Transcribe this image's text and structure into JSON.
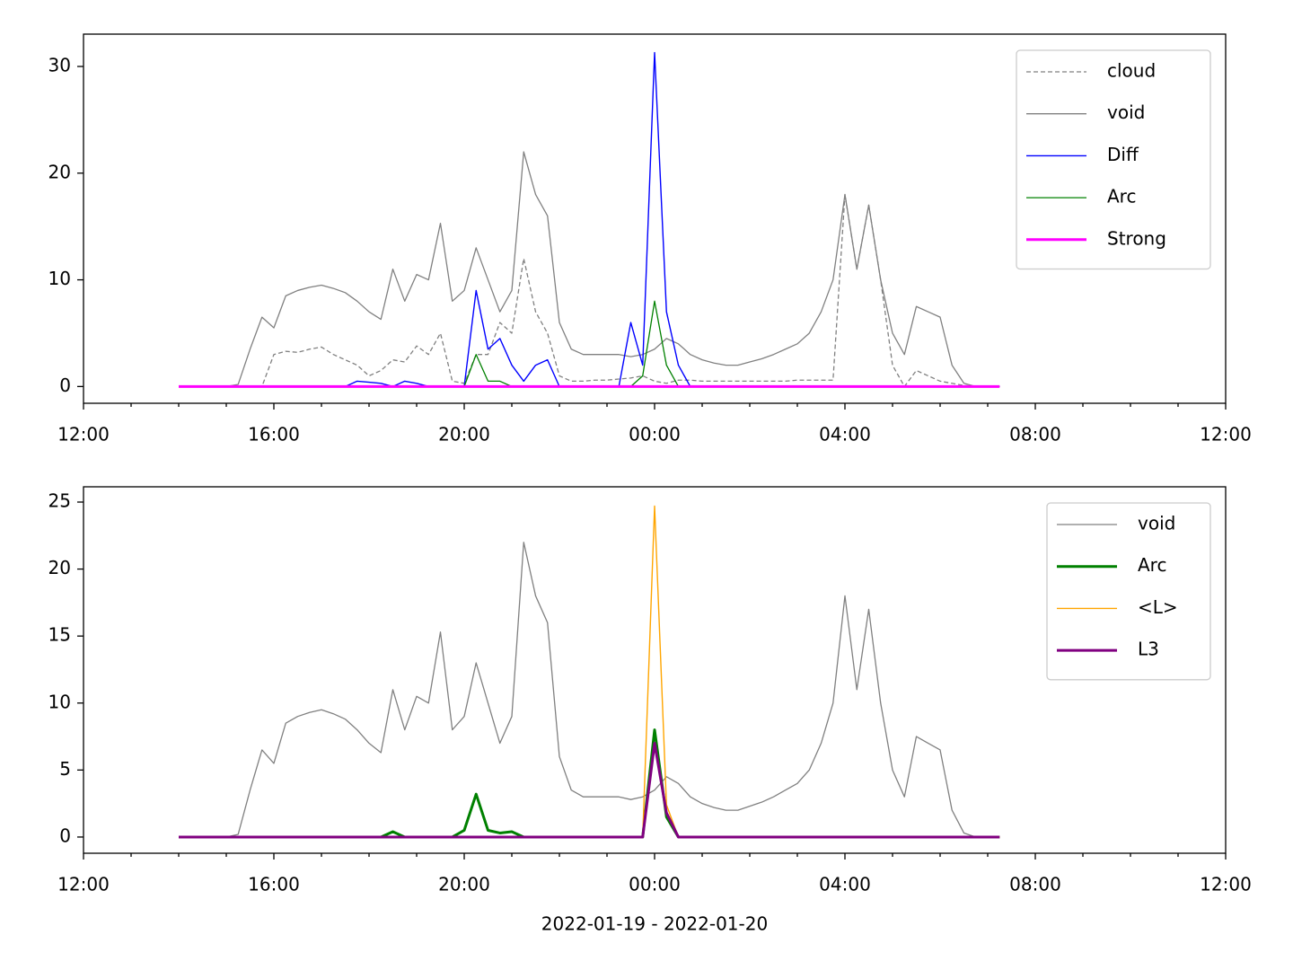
{
  "chart_data": [
    {
      "type": "line",
      "x": [
        "2022-01-19 14:00",
        "2022-01-19 14:15",
        "2022-01-19 14:30",
        "2022-01-19 14:45",
        "2022-01-19 15:00",
        "2022-01-19 15:15",
        "2022-01-19 15:30",
        "2022-01-19 15:45",
        "2022-01-19 16:00",
        "2022-01-19 16:15",
        "2022-01-19 16:30",
        "2022-01-19 16:45",
        "2022-01-19 17:00",
        "2022-01-19 17:15",
        "2022-01-19 17:30",
        "2022-01-19 17:45",
        "2022-01-19 18:00",
        "2022-01-19 18:15",
        "2022-01-19 18:30",
        "2022-01-19 18:45",
        "2022-01-19 19:00",
        "2022-01-19 19:15",
        "2022-01-19 19:30",
        "2022-01-19 19:45",
        "2022-01-19 20:00",
        "2022-01-19 20:15",
        "2022-01-19 20:30",
        "2022-01-19 20:45",
        "2022-01-19 21:00",
        "2022-01-19 21:15",
        "2022-01-19 21:30",
        "2022-01-19 21:45",
        "2022-01-19 22:00",
        "2022-01-19 22:15",
        "2022-01-19 22:30",
        "2022-01-19 22:45",
        "2022-01-19 23:00",
        "2022-01-19 23:15",
        "2022-01-19 23:30",
        "2022-01-19 23:45",
        "2022-01-20 00:00",
        "2022-01-20 00:15",
        "2022-01-20 00:30",
        "2022-01-20 00:45",
        "2022-01-20 01:00",
        "2022-01-20 01:15",
        "2022-01-20 01:30",
        "2022-01-20 01:45",
        "2022-01-20 02:00",
        "2022-01-20 02:15",
        "2022-01-20 02:30",
        "2022-01-20 02:45",
        "2022-01-20 03:00",
        "2022-01-20 03:15",
        "2022-01-20 03:30",
        "2022-01-20 03:45",
        "2022-01-20 04:00",
        "2022-01-20 04:15",
        "2022-01-20 04:30",
        "2022-01-20 04:45",
        "2022-01-20 05:00",
        "2022-01-20 05:15",
        "2022-01-20 05:30",
        "2022-01-20 05:45",
        "2022-01-20 06:00",
        "2022-01-20 06:15",
        "2022-01-20 06:30",
        "2022-01-20 06:45",
        "2022-01-20 07:00",
        "2022-01-20 07:15"
      ],
      "series": [
        {
          "name": "cloud",
          "color": "#808080",
          "linestyle": "dashed",
          "values": [
            0,
            0,
            0,
            0,
            0,
            0,
            0,
            0,
            3,
            3.3,
            3.2,
            3.5,
            3.7,
            3,
            2.5,
            2,
            1,
            1.5,
            2.5,
            2.3,
            3.8,
            3,
            5,
            0.5,
            0.3,
            3,
            3,
            6,
            5,
            12,
            7,
            5,
            1,
            0.5,
            0.5,
            0.6,
            0.6,
            0.7,
            0.8,
            1,
            0.5,
            0.3,
            0.6,
            0.6,
            0.5,
            0.5,
            0.5,
            0.5,
            0.5,
            0.5,
            0.5,
            0.5,
            0.6,
            0.6,
            0.6,
            0.6,
            18,
            11,
            17,
            10,
            2,
            0,
            1.5,
            1,
            0.5,
            0.3,
            0.1,
            0,
            0,
            0
          ]
        },
        {
          "name": "void",
          "color": "#808080",
          "linestyle": "solid",
          "values": [
            0,
            0,
            0,
            0,
            0,
            0.2,
            3.5,
            6.5,
            5.5,
            8.5,
            9,
            9.3,
            9.5,
            9.2,
            8.8,
            8,
            7,
            6.3,
            11,
            8,
            10.5,
            10,
            15.3,
            8,
            9,
            13,
            10,
            7,
            9,
            22,
            18,
            16,
            6,
            3.5,
            3,
            3,
            3,
            3,
            2.8,
            3,
            3.5,
            4.5,
            4,
            3,
            2.5,
            2.2,
            2,
            2,
            2.3,
            2.6,
            3,
            3.5,
            4,
            5,
            7,
            10,
            18,
            11,
            17,
            10,
            5,
            3,
            7.5,
            7,
            6.5,
            2,
            0.3,
            0,
            0,
            0
          ]
        },
        {
          "name": "Diff",
          "color": "#0000ff",
          "linestyle": "solid",
          "values": [
            0,
            0,
            0,
            0,
            0,
            0,
            0,
            0,
            0,
            0,
            0,
            0,
            0,
            0,
            0,
            0.5,
            0.4,
            0.3,
            0,
            0.5,
            0.3,
            0,
            0,
            0,
            0,
            9,
            3.5,
            4.5,
            2,
            0.5,
            2,
            2.5,
            0,
            0,
            0,
            0,
            0,
            0,
            6,
            2,
            31.3,
            7,
            2,
            0,
            0,
            0,
            0,
            0,
            0,
            0,
            0,
            0,
            0,
            0,
            0,
            0,
            0,
            0,
            0,
            0,
            0,
            0,
            0,
            0,
            0,
            0,
            0,
            0,
            0,
            0
          ]
        },
        {
          "name": "Arc",
          "color": "#008000",
          "linestyle": "solid",
          "values": [
            0,
            0,
            0,
            0,
            0,
            0,
            0,
            0,
            0,
            0,
            0,
            0,
            0,
            0,
            0,
            0,
            0,
            0,
            0,
            0,
            0,
            0,
            0,
            0,
            0,
            3,
            0.5,
            0.5,
            0,
            0,
            0,
            0,
            0,
            0,
            0,
            0,
            0,
            0,
            0,
            1,
            8,
            2,
            0,
            0,
            0,
            0,
            0,
            0,
            0,
            0,
            0,
            0,
            0,
            0,
            0,
            0,
            0,
            0,
            0,
            0,
            0,
            0,
            0,
            0,
            0,
            0,
            0,
            0,
            0,
            0
          ]
        },
        {
          "name": "Strong",
          "color": "#ff00ff",
          "linestyle": "solid",
          "values": [
            0,
            0,
            0,
            0,
            0,
            0,
            0,
            0,
            0,
            0,
            0,
            0,
            0,
            0,
            0,
            0,
            0,
            0,
            0,
            0,
            0,
            0,
            0,
            0,
            0,
            0,
            0,
            0,
            0,
            0,
            0,
            0,
            0,
            0,
            0,
            0,
            0,
            0,
            0,
            0,
            0,
            0,
            0,
            0,
            0,
            0,
            0,
            0,
            0,
            0,
            0,
            0,
            0,
            0,
            0,
            0,
            0,
            0,
            0,
            0,
            0,
            0,
            0,
            0,
            0,
            0,
            0,
            0,
            0,
            0
          ]
        }
      ],
      "xlim": [
        "2022-01-19 12:00",
        "2022-01-20 12:00"
      ],
      "xticks": [
        {
          "value": "2022-01-19 12:00",
          "label": "12:00"
        },
        {
          "value": "2022-01-19 16:00",
          "label": "16:00"
        },
        {
          "value": "2022-01-19 20:00",
          "label": "20:00"
        },
        {
          "value": "2022-01-20 00:00",
          "label": "00:00"
        },
        {
          "value": "2022-01-20 04:00",
          "label": "04:00"
        },
        {
          "value": "2022-01-20 08:00",
          "label": "08:00"
        },
        {
          "value": "2022-01-20 12:00",
          "label": "12:00"
        }
      ],
      "xminorticks": [
        "2022-01-19 13:00",
        "2022-01-19 14:00",
        "2022-01-19 15:00",
        "2022-01-19 17:00",
        "2022-01-19 18:00",
        "2022-01-19 19:00",
        "2022-01-19 21:00",
        "2022-01-19 22:00",
        "2022-01-19 23:00",
        "2022-01-20 01:00",
        "2022-01-20 02:00",
        "2022-01-20 03:00",
        "2022-01-20 05:00",
        "2022-01-20 06:00",
        "2022-01-20 07:00",
        "2022-01-20 09:00",
        "2022-01-20 10:00",
        "2022-01-20 11:00"
      ],
      "ylim": [
        -1.57,
        33.03
      ],
      "yticks": [
        0,
        10,
        20,
        30
      ],
      "legend": "upper right"
    },
    {
      "type": "line",
      "x": [
        "2022-01-19 14:00",
        "2022-01-19 14:15",
        "2022-01-19 14:30",
        "2022-01-19 14:45",
        "2022-01-19 15:00",
        "2022-01-19 15:15",
        "2022-01-19 15:30",
        "2022-01-19 15:45",
        "2022-01-19 16:00",
        "2022-01-19 16:15",
        "2022-01-19 16:30",
        "2022-01-19 16:45",
        "2022-01-19 17:00",
        "2022-01-19 17:15",
        "2022-01-19 17:30",
        "2022-01-19 17:45",
        "2022-01-19 18:00",
        "2022-01-19 18:15",
        "2022-01-19 18:30",
        "2022-01-19 18:45",
        "2022-01-19 19:00",
        "2022-01-19 19:15",
        "2022-01-19 19:30",
        "2022-01-19 19:45",
        "2022-01-19 20:00",
        "2022-01-19 20:15",
        "2022-01-19 20:30",
        "2022-01-19 20:45",
        "2022-01-19 21:00",
        "2022-01-19 21:15",
        "2022-01-19 21:30",
        "2022-01-19 21:45",
        "2022-01-19 22:00",
        "2022-01-19 22:15",
        "2022-01-19 22:30",
        "2022-01-19 22:45",
        "2022-01-19 23:00",
        "2022-01-19 23:15",
        "2022-01-19 23:30",
        "2022-01-19 23:45",
        "2022-01-20 00:00",
        "2022-01-20 00:15",
        "2022-01-20 00:30",
        "2022-01-20 00:45",
        "2022-01-20 01:00",
        "2022-01-20 01:15",
        "2022-01-20 01:30",
        "2022-01-20 01:45",
        "2022-01-20 02:00",
        "2022-01-20 02:15",
        "2022-01-20 02:30",
        "2022-01-20 02:45",
        "2022-01-20 03:00",
        "2022-01-20 03:15",
        "2022-01-20 03:30",
        "2022-01-20 03:45",
        "2022-01-20 04:00",
        "2022-01-20 04:15",
        "2022-01-20 04:30",
        "2022-01-20 04:45",
        "2022-01-20 05:00",
        "2022-01-20 05:15",
        "2022-01-20 05:30",
        "2022-01-20 05:45",
        "2022-01-20 06:00",
        "2022-01-20 06:15",
        "2022-01-20 06:30",
        "2022-01-20 06:45",
        "2022-01-20 07:00",
        "2022-01-20 07:15"
      ],
      "series": [
        {
          "name": "void",
          "color": "#808080",
          "linestyle": "solid",
          "values": [
            0,
            0,
            0,
            0,
            0,
            0.2,
            3.5,
            6.5,
            5.5,
            8.5,
            9,
            9.3,
            9.5,
            9.2,
            8.8,
            8,
            7,
            6.3,
            11,
            8,
            10.5,
            10,
            15.3,
            8,
            9,
            13,
            10,
            7,
            9,
            22,
            18,
            16,
            6,
            3.5,
            3,
            3,
            3,
            3,
            2.8,
            3,
            3.5,
            4.5,
            4,
            3,
            2.5,
            2.2,
            2,
            2,
            2.3,
            2.6,
            3,
            3.5,
            4,
            5,
            7,
            10,
            18,
            11,
            17,
            10,
            5,
            3,
            7.5,
            7,
            6.5,
            2,
            0.3,
            0,
            0,
            0
          ]
        },
        {
          "name": "Arc",
          "color": "#008000",
          "linestyle": "solid",
          "values": [
            0,
            0,
            0,
            0,
            0,
            0,
            0,
            0,
            0,
            0,
            0,
            0,
            0,
            0,
            0,
            0,
            0,
            0,
            0.4,
            0,
            0,
            0,
            0,
            0,
            0.5,
            3.2,
            0.5,
            0.3,
            0.4,
            0,
            0,
            0,
            0,
            0,
            0,
            0,
            0,
            0,
            0,
            0,
            8,
            1.5,
            0,
            0,
            0,
            0,
            0,
            0,
            0,
            0,
            0,
            0,
            0,
            0,
            0,
            0,
            0,
            0,
            0,
            0,
            0,
            0,
            0,
            0,
            0,
            0,
            0,
            0,
            0,
            0
          ]
        },
        {
          "name": "<L>",
          "color": "#ffa500",
          "linestyle": "solid",
          "values": [
            0,
            0,
            0,
            0,
            0,
            0,
            0,
            0,
            0,
            0,
            0,
            0,
            0,
            0,
            0,
            0,
            0,
            0,
            0,
            0,
            0,
            0,
            0,
            0,
            0,
            0,
            0,
            0,
            0,
            0,
            0,
            0,
            0,
            0,
            0,
            0,
            0,
            0,
            0,
            0,
            24.7,
            2.4,
            0,
            0,
            0,
            0,
            0,
            0,
            0,
            0,
            0,
            0,
            0,
            0,
            0,
            0,
            0,
            0,
            0,
            0,
            0,
            0,
            0,
            0,
            0,
            0,
            0,
            0,
            0,
            0
          ]
        },
        {
          "name": "L3",
          "color": "#800080",
          "linestyle": "solid",
          "values": [
            0,
            0,
            0,
            0,
            0,
            0,
            0,
            0,
            0,
            0,
            0,
            0,
            0,
            0,
            0,
            0,
            0,
            0,
            0,
            0,
            0,
            0,
            0,
            0,
            0,
            0,
            0,
            0,
            0,
            0,
            0,
            0,
            0,
            0,
            0,
            0,
            0,
            0,
            0,
            0,
            7,
            1.8,
            0,
            0,
            0,
            0,
            0,
            0,
            0,
            0,
            0,
            0,
            0,
            0,
            0,
            0,
            0,
            0,
            0,
            0,
            0,
            0,
            0,
            0,
            0,
            0,
            0,
            0,
            0,
            0
          ]
        }
      ],
      "xlim": [
        "2022-01-19 12:00",
        "2022-01-20 12:00"
      ],
      "xticks": [
        {
          "value": "2022-01-19 12:00",
          "label": "12:00"
        },
        {
          "value": "2022-01-19 16:00",
          "label": "16:00"
        },
        {
          "value": "2022-01-19 20:00",
          "label": "20:00"
        },
        {
          "value": "2022-01-20 00:00",
          "label": "00:00"
        },
        {
          "value": "2022-01-20 04:00",
          "label": "04:00"
        },
        {
          "value": "2022-01-20 08:00",
          "label": "08:00"
        },
        {
          "value": "2022-01-20 12:00",
          "label": "12:00"
        }
      ],
      "xminorticks": [
        "2022-01-19 13:00",
        "2022-01-19 14:00",
        "2022-01-19 15:00",
        "2022-01-19 17:00",
        "2022-01-19 18:00",
        "2022-01-19 19:00",
        "2022-01-19 21:00",
        "2022-01-19 22:00",
        "2022-01-19 23:00",
        "2022-01-20 01:00",
        "2022-01-20 02:00",
        "2022-01-20 03:00",
        "2022-01-20 05:00",
        "2022-01-20 06:00",
        "2022-01-20 07:00",
        "2022-01-20 09:00",
        "2022-01-20 10:00",
        "2022-01-20 11:00"
      ],
      "ylim": [
        -1.21,
        26.14
      ],
      "yticks": [
        0,
        5,
        10,
        15,
        20,
        25
      ],
      "xlabel": "2022-01-19 - 2022-01-20",
      "legend": "upper right"
    }
  ]
}
